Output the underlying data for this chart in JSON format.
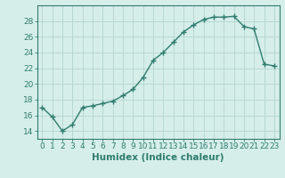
{
  "x": [
    0,
    1,
    2,
    3,
    4,
    5,
    6,
    7,
    8,
    9,
    10,
    11,
    12,
    13,
    14,
    15,
    16,
    17,
    18,
    19,
    20,
    21,
    22,
    23
  ],
  "y": [
    17.0,
    15.8,
    14.0,
    14.8,
    17.0,
    17.2,
    17.5,
    17.8,
    18.5,
    19.3,
    20.8,
    23.0,
    24.0,
    25.3,
    26.6,
    27.5,
    28.2,
    28.5,
    28.5,
    28.6,
    27.3,
    27.0,
    22.5,
    22.3
  ],
  "line_color": "#2e7d6e",
  "marker": "+",
  "marker_size": 4,
  "bg_color": "#d6eeea",
  "grid_color": "#b8d8d2",
  "xlabel": "Humidex (Indice chaleur)",
  "ylim": [
    13,
    30
  ],
  "xlim": [
    -0.5,
    23.5
  ],
  "yticks": [
    14,
    16,
    18,
    20,
    22,
    24,
    26,
    28
  ],
  "xticks": [
    0,
    1,
    2,
    3,
    4,
    5,
    6,
    7,
    8,
    9,
    10,
    11,
    12,
    13,
    14,
    15,
    16,
    17,
    18,
    19,
    20,
    21,
    22,
    23
  ],
  "tick_label_fontsize": 6.5,
  "xlabel_fontsize": 7.5,
  "axis_color": "#2e7d6e",
  "line_width": 1.0,
  "markeredgewidth": 1.0
}
